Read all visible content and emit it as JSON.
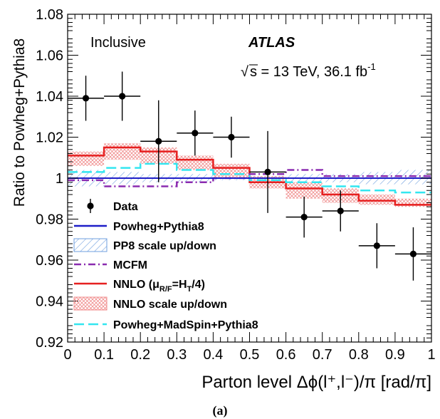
{
  "chart_data": {
    "type": "line",
    "title": "",
    "xlabel": "Parton level Δϕ(l⁺,l⁻)/π [rad/π]",
    "ylabel": "Ratio to Powheg+Pythia8",
    "xlim": [
      0,
      1
    ],
    "ylim": [
      0.92,
      1.08
    ],
    "x_ticks": [
      "0",
      "0.1",
      "0.2",
      "0.3",
      "0.4",
      "0.5",
      "0.6",
      "0.7",
      "0.8",
      "0.9",
      "1"
    ],
    "y_ticks": [
      "0.92",
      "0.94",
      "0.96",
      "0.98",
      "1",
      "1.02",
      "1.04",
      "1.06",
      "1.08"
    ],
    "bin_edges": [
      0,
      0.1,
      0.2,
      0.3,
      0.4,
      0.5,
      0.6,
      0.7,
      0.8,
      0.9,
      1.0
    ],
    "annotations": {
      "region": "Inclusive",
      "experiment": "ATLAS",
      "energy_prefix": "s = 13 TeV, 36.1 fb",
      "energy_sup": "-1",
      "panel_label": "(a)"
    },
    "legend": {
      "placement": "lower-left",
      "entries": [
        {
          "key": "data",
          "label": "Data"
        },
        {
          "key": "pp8",
          "label": "Powheg+Pythia8"
        },
        {
          "key": "pp8band",
          "label": "PP8 scale up/down"
        },
        {
          "key": "mcfm",
          "label": "MCFM"
        },
        {
          "key": "nnlo",
          "label": "NNLO (μ",
          "sub": "R/F",
          "label_tail": "=H",
          "sub2": "T",
          "label_end": "/4)"
        },
        {
          "key": "nnloband",
          "label": "NNLO scale up/down"
        },
        {
          "key": "madspin",
          "label": "Powheg+MadSpin+Pythia8"
        }
      ]
    },
    "colors": {
      "data": "#000000",
      "pp8": "#1e1ec8",
      "pp8band": "#6f9fdf",
      "mcfm": "#8a2bb0",
      "nnlo": "#e62020",
      "nnloband": "#f08a8a",
      "madspin": "#33e6f0"
    },
    "series": [
      {
        "key": "data",
        "name": "Data",
        "x": [
          0.05,
          0.15,
          0.25,
          0.35,
          0.45,
          0.55,
          0.65,
          0.75,
          0.85,
          0.95
        ],
        "y": [
          1.039,
          1.04,
          1.018,
          1.022,
          1.02,
          1.003,
          0.981,
          0.984,
          0.967,
          0.963
        ],
        "yerr": [
          0.011,
          0.012,
          0.02,
          0.011,
          0.01,
          0.02,
          0.01,
          0.01,
          0.011,
          0.013
        ]
      },
      {
        "key": "pp8",
        "name": "Powheg+Pythia8",
        "y": [
          1.0,
          1.0,
          1.0,
          1.0,
          1.0,
          1.0,
          1.0,
          1.0,
          1.0,
          1.0
        ]
      },
      {
        "key": "pp8band",
        "name": "PP8 scale up/down",
        "low": [
          0.996,
          0.997,
          0.998,
          0.998,
          0.999,
          0.999,
          0.998,
          0.998,
          0.997,
          0.997
        ],
        "high": [
          1.004,
          1.003,
          1.002,
          1.002,
          1.001,
          1.001,
          1.002,
          1.002,
          1.003,
          1.004
        ]
      },
      {
        "key": "mcfm",
        "name": "MCFM",
        "y": [
          0.999,
          0.996,
          0.996,
          0.998,
          1.0,
          1.002,
          1.004,
          1.001,
          1.001,
          1.001
        ]
      },
      {
        "key": "nnlo",
        "name": "NNLO (μR/F=HT/4)",
        "y": [
          1.011,
          1.015,
          1.013,
          1.009,
          1.005,
          0.998,
          0.995,
          0.992,
          0.989,
          0.987
        ]
      },
      {
        "key": "nnloband",
        "name": "NNLO scale up/down",
        "low": [
          1.006,
          1.009,
          1.007,
          1.004,
          1.0,
          0.995,
          0.99,
          0.988,
          0.987,
          0.986
        ],
        "high": [
          1.013,
          1.017,
          1.015,
          1.011,
          1.007,
          1.001,
          0.998,
          0.995,
          0.992,
          0.99
        ]
      },
      {
        "key": "madspin",
        "name": "Powheg+MadSpin+Pythia8",
        "y": [
          1.003,
          1.005,
          1.007,
          1.004,
          1.002,
          0.999,
          0.998,
          0.996,
          0.994,
          0.993
        ]
      }
    ]
  }
}
